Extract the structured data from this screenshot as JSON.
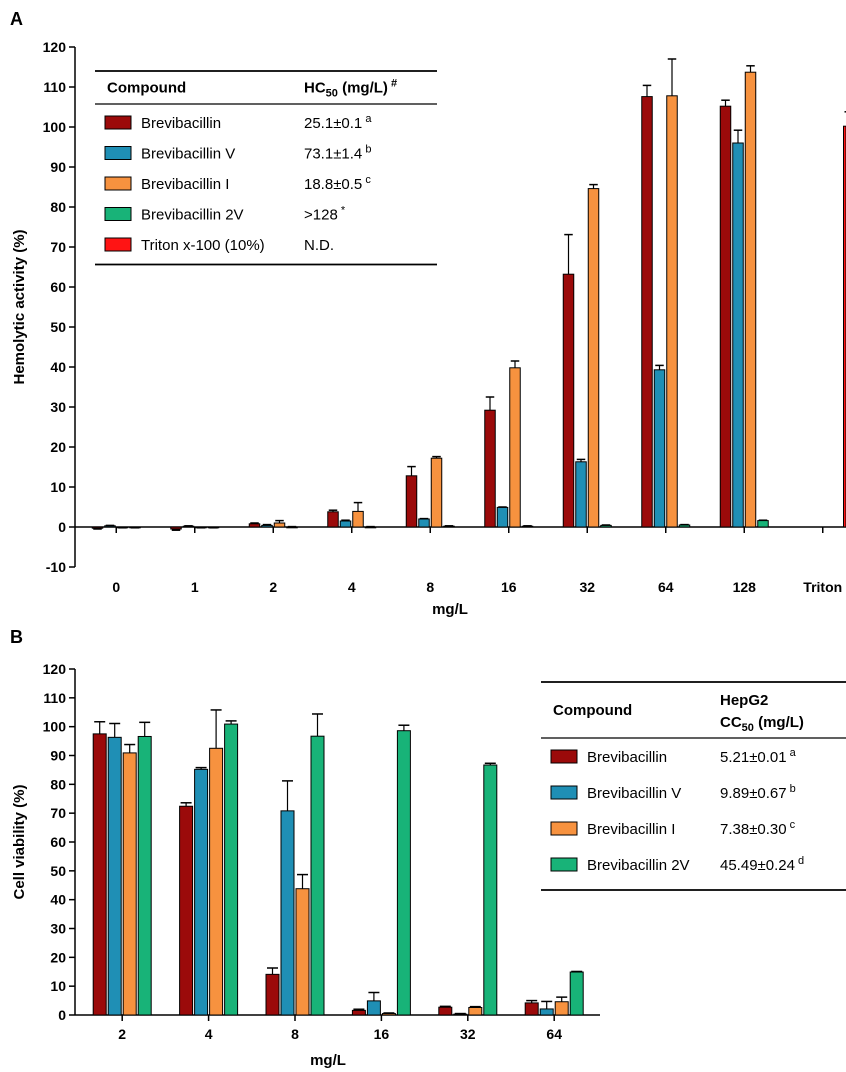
{
  "colors": {
    "Brevibacillin": "#9b0a0a",
    "Brevibacillin V": "#1f8fb5",
    "Brevibacillin I": "#f7923f",
    "Brevibacillin 2V": "#18b378",
    "Triton x-100 (10%)": "#ff1414"
  },
  "chart_data": [
    {
      "type": "bar",
      "panel": "A",
      "xlabel": "mg/L",
      "ylabel": "Hemolytic activity (%)",
      "ylim": [
        -10,
        120
      ],
      "yticks": [
        -10,
        0,
        10,
        20,
        30,
        40,
        50,
        60,
        70,
        80,
        90,
        100,
        110,
        120
      ],
      "categories": [
        "0",
        "1",
        "2",
        "4",
        "8",
        "16",
        "32",
        "64",
        "128",
        "Triton"
      ],
      "series": [
        {
          "name": "Brevibacillin",
          "values": [
            -0.3,
            -0.5,
            0.8,
            3.8,
            12.8,
            29.2,
            63.2,
            107.6,
            105.2,
            null
          ],
          "errors": [
            0.2,
            0.3,
            0.2,
            0.4,
            2.3,
            3.3,
            9.9,
            2.8,
            1.5,
            null
          ]
        },
        {
          "name": "Brevibacillin V",
          "values": [
            0.3,
            0.2,
            0.4,
            1.5,
            2.0,
            4.9,
            16.3,
            39.3,
            96.0,
            null
          ],
          "errors": [
            0.1,
            0.1,
            0.2,
            0.2,
            0.1,
            0.1,
            0.6,
            1.1,
            3.2,
            null
          ]
        },
        {
          "name": "Brevibacillin I",
          "values": [
            -0.1,
            -0.1,
            1.0,
            3.9,
            17.2,
            39.8,
            84.6,
            107.8,
            113.7,
            null
          ],
          "errors": [
            0.1,
            0.1,
            0.6,
            2.2,
            0.4,
            1.7,
            1.0,
            9.2,
            1.6,
            null
          ]
        },
        {
          "name": "Brevibacillin 2V",
          "values": [
            -0.1,
            -0.1,
            0.0,
            0.0,
            0.2,
            0.2,
            0.4,
            0.5,
            1.6,
            null
          ],
          "errors": [
            0.1,
            0.1,
            0.1,
            0.1,
            0.1,
            0.1,
            0.1,
            0.1,
            0.1,
            null
          ]
        },
        {
          "name": "Triton x-100 (10%)",
          "values": [
            null,
            null,
            null,
            null,
            null,
            null,
            null,
            null,
            null,
            100.2
          ],
          "errors": [
            null,
            null,
            null,
            null,
            null,
            null,
            null,
            null,
            null,
            3.6
          ]
        }
      ],
      "legend_table": {
        "header_compound": "Compound",
        "header_value": "HC",
        "header_value_sub": "50",
        "header_value_unit": " (mg/L)",
        "header_value_sup": "#",
        "rows": [
          {
            "series": "Brevibacillin",
            "label": "Brevibacillin",
            "value": "25.1±0.1",
            "sup": "a"
          },
          {
            "series": "Brevibacillin V",
            "label": "Brevibacillin V",
            "value": "73.1±1.4",
            "sup": "b"
          },
          {
            "series": "Brevibacillin I",
            "label": "Brevibacillin I",
            "value": "18.8±0.5",
            "sup": "c"
          },
          {
            "series": "Brevibacillin 2V",
            "label": "Brevibacillin 2V",
            "value": ">128",
            "sup": "*"
          },
          {
            "series": "Triton x-100 (10%)",
            "label": "Triton x-100 (10%)",
            "value": "N.D.",
            "sup": ""
          }
        ]
      }
    },
    {
      "type": "bar",
      "panel": "B",
      "xlabel": "mg/L",
      "ylabel": "Cell viability (%)",
      "ylim": [
        0,
        120
      ],
      "yticks": [
        0,
        10,
        20,
        30,
        40,
        50,
        60,
        70,
        80,
        90,
        100,
        110,
        120
      ],
      "categories": [
        "2",
        "4",
        "8",
        "16",
        "32",
        "64"
      ],
      "series": [
        {
          "name": "Brevibacillin",
          "values": [
            97.5,
            72.4,
            14.1,
            1.6,
            2.7,
            4.2
          ],
          "errors": [
            4.2,
            1.2,
            2.2,
            0.4,
            0.3,
            0.8
          ]
        },
        {
          "name": "Brevibacillin V",
          "values": [
            96.3,
            85.2,
            70.8,
            4.9,
            0.3,
            2.1
          ],
          "errors": [
            4.8,
            0.6,
            10.4,
            2.9,
            0.2,
            2.6
          ]
        },
        {
          "name": "Brevibacillin I",
          "values": [
            90.9,
            92.5,
            43.8,
            0.5,
            2.6,
            4.6
          ],
          "errors": [
            2.9,
            13.3,
            4.9,
            0.2,
            0.3,
            1.6
          ]
        },
        {
          "name": "Brevibacillin 2V",
          "values": [
            96.6,
            100.9,
            96.7,
            98.6,
            86.7,
            14.9
          ],
          "errors": [
            4.9,
            1.1,
            7.7,
            1.9,
            0.6,
            0.2
          ]
        }
      ],
      "legend_table": {
        "header_compound": "Compound",
        "header_value": "HepG2",
        "header_value_line2": "CC",
        "header_value_sub": "50",
        "header_value_unit": " (mg/L)",
        "rows": [
          {
            "series": "Brevibacillin",
            "label": "Brevibacillin",
            "value": "5.21±0.01",
            "sup": "a"
          },
          {
            "series": "Brevibacillin V",
            "label": "Brevibacillin V",
            "value": "9.89±0.67",
            "sup": "b"
          },
          {
            "series": "Brevibacillin I",
            "label": "Brevibacillin I",
            "value": "7.38±0.30",
            "sup": "c"
          },
          {
            "series": "Brevibacillin 2V",
            "label": "Brevibacillin 2V",
            "value": "45.49±0.24",
            "sup": "d"
          }
        ]
      }
    }
  ]
}
